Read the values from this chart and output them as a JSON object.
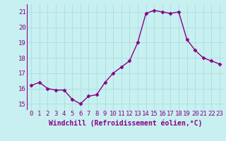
{
  "x": [
    0,
    1,
    2,
    3,
    4,
    5,
    6,
    7,
    8,
    9,
    10,
    11,
    12,
    13,
    14,
    15,
    16,
    17,
    18,
    19,
    20,
    21,
    22,
    23
  ],
  "y": [
    16.2,
    16.4,
    16.0,
    15.9,
    15.9,
    15.3,
    15.0,
    15.5,
    15.6,
    16.4,
    17.0,
    17.4,
    17.8,
    19.0,
    20.9,
    21.1,
    21.0,
    20.9,
    21.0,
    19.2,
    18.5,
    18.0,
    17.8,
    17.6
  ],
  "line_color": "#880088",
  "marker": "D",
  "marker_size": 2.5,
  "xlabel": "Windchill (Refroidissement éolien,°C)",
  "xlabel_fontsize": 7,
  "yticks": [
    15,
    16,
    17,
    18,
    19,
    20,
    21
  ],
  "xticks": [
    0,
    1,
    2,
    3,
    4,
    5,
    6,
    7,
    8,
    9,
    10,
    11,
    12,
    13,
    14,
    15,
    16,
    17,
    18,
    19,
    20,
    21,
    22,
    23
  ],
  "xlim": [
    -0.5,
    23.5
  ],
  "ylim": [
    14.6,
    21.5
  ],
  "bg_color": "#c8f0f0",
  "grid_color": "#aadddd",
  "tick_fontsize": 6.5,
  "linewidth": 1.0
}
